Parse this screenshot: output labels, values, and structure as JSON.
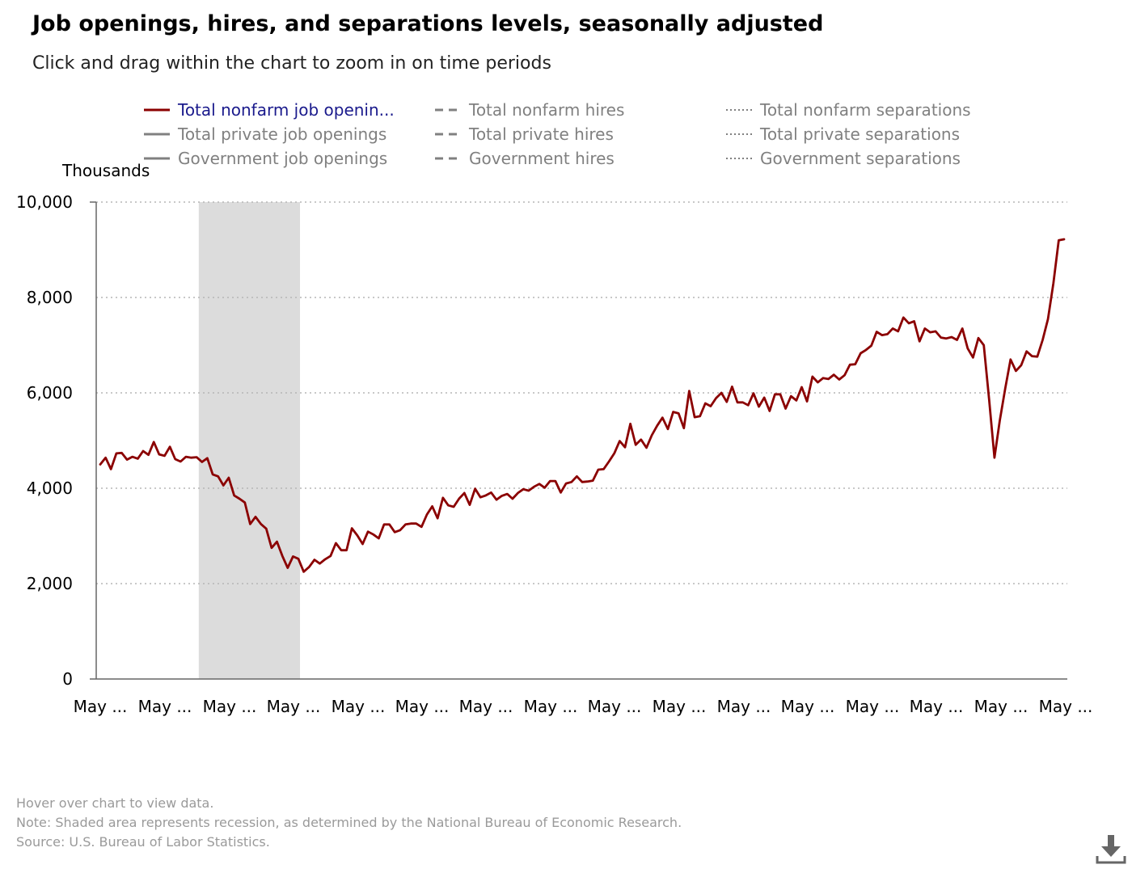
{
  "title": "Job openings, hires, and separations levels, seasonally adjusted",
  "subtitle": "Click and drag within the chart to zoom in on time periods",
  "legend": [
    {
      "label": "Total nonfarm job openin...",
      "style": "solid",
      "color": "#8b0000",
      "active": true
    },
    {
      "label": "Total nonfarm hires",
      "style": "dashed",
      "color": "#808080",
      "active": false
    },
    {
      "label": "Total nonfarm separations",
      "style": "dotted",
      "color": "#808080",
      "active": false
    },
    {
      "label": "Total private job openings",
      "style": "solid",
      "color": "#808080",
      "active": false
    },
    {
      "label": "Total private hires",
      "style": "dashed",
      "color": "#808080",
      "active": false
    },
    {
      "label": "Total private separations",
      "style": "dotted",
      "color": "#808080",
      "active": false
    },
    {
      "label": "Government job openings",
      "style": "solid",
      "color": "#808080",
      "active": false
    },
    {
      "label": "Government hires",
      "style": "dashed",
      "color": "#808080",
      "active": false
    },
    {
      "label": "Government separations",
      "style": "dotted",
      "color": "#808080",
      "active": false
    }
  ],
  "footnotes": {
    "hover": "Hover over chart to view data.",
    "note": "Note: Shaded area represents recession, as determined by the National Bureau of Economic Research.",
    "source": "Source: U.S. Bureau of Labor Statistics."
  },
  "icons": {
    "download": "download-icon"
  },
  "chart_data": {
    "type": "line",
    "title": "Job openings, hires, and separations levels, seasonally adjusted",
    "xlabel": "",
    "ylabel": "Thousands",
    "ylim": [
      0,
      10000
    ],
    "yticks": [
      0,
      2000,
      4000,
      6000,
      8000,
      10000
    ],
    "ytick_labels": [
      "0",
      "2,000",
      "4,000",
      "6,000",
      "8,000",
      "10,000"
    ],
    "xtick_labels": [
      "May ...",
      "May ...",
      "May ...",
      "May ...",
      "May ...",
      "May ...",
      "May ...",
      "May ...",
      "May ...",
      "May ...",
      "May ...",
      "May ...",
      "May ...",
      "May ...",
      "May ...",
      "May ..."
    ],
    "grid": true,
    "line_color": "#8b0000",
    "recession_color": "#dcdcdc",
    "recession": {
      "start_month_index": 19,
      "end_month_index": 37
    },
    "series": [
      {
        "name": "Total nonfarm job openin...",
        "values": [
          4500,
          4640,
          4400,
          4730,
          4740,
          4600,
          4660,
          4620,
          4780,
          4700,
          4970,
          4710,
          4680,
          4870,
          4610,
          4560,
          4660,
          4640,
          4650,
          4550,
          4630,
          4290,
          4250,
          4060,
          4220,
          3850,
          3780,
          3700,
          3250,
          3400,
          3250,
          3150,
          2750,
          2880,
          2580,
          2330,
          2570,
          2520,
          2250,
          2350,
          2500,
          2420,
          2510,
          2580,
          2850,
          2700,
          2700,
          3160,
          3010,
          2830,
          3090,
          3030,
          2950,
          3240,
          3240,
          3080,
          3120,
          3240,
          3260,
          3260,
          3190,
          3450,
          3620,
          3370,
          3800,
          3640,
          3610,
          3780,
          3900,
          3650,
          3990,
          3810,
          3850,
          3910,
          3760,
          3840,
          3880,
          3780,
          3900,
          3980,
          3950,
          4030,
          4090,
          4010,
          4150,
          4150,
          3910,
          4100,
          4130,
          4250,
          4130,
          4140,
          4160,
          4390,
          4400,
          4560,
          4730,
          4990,
          4860,
          5350,
          4910,
          5020,
          4850,
          5110,
          5310,
          5480,
          5240,
          5600,
          5570,
          5260,
          6040,
          5490,
          5510,
          5780,
          5720,
          5890,
          6000,
          5810,
          6130,
          5800,
          5800,
          5740,
          5990,
          5710,
          5900,
          5620,
          5970,
          5970,
          5670,
          5930,
          5840,
          6120,
          5820,
          6340,
          6220,
          6310,
          6290,
          6380,
          6280,
          6370,
          6590,
          6600,
          6830,
          6900,
          6990,
          7280,
          7210,
          7230,
          7350,
          7290,
          7580,
          7460,
          7500,
          7080,
          7350,
          7270,
          7290,
          7160,
          7140,
          7170,
          7110,
          7350,
          6930,
          6740,
          7150,
          7000,
          5860,
          4640,
          5420,
          6090,
          6700,
          6460,
          6580,
          6870,
          6770,
          6760,
          7110,
          7550,
          8300,
          9200,
          9220
        ]
      }
    ]
  }
}
